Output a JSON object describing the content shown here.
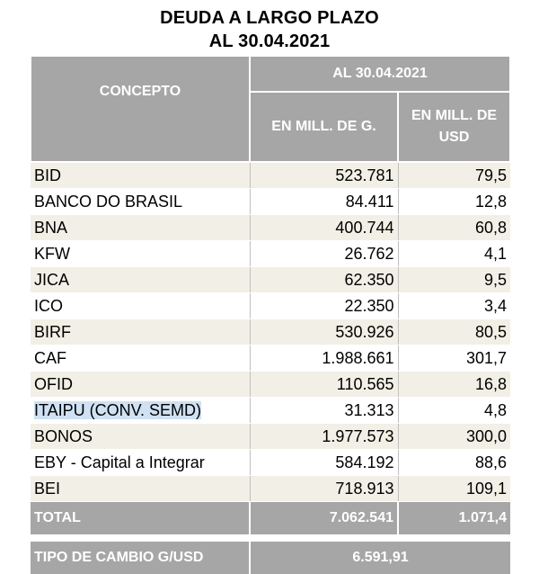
{
  "title_line1": "DEUDA A LARGO PLAZO",
  "title_line2": "AL 30.04.2021",
  "header": {
    "concepto": "CONCEPTO",
    "date": "AL 30.04.2021",
    "col_g": "EN MILL. DE G.",
    "col_usd": "EN MILL. DE USD"
  },
  "rows": [
    {
      "concepto": "BID",
      "g": "523.781",
      "usd": "79,5"
    },
    {
      "concepto": "BANCO DO BRASIL",
      "g": "84.411",
      "usd": "12,8"
    },
    {
      "concepto": "BNA",
      "g": "400.744",
      "usd": "60,8"
    },
    {
      "concepto": "KFW",
      "g": "26.762",
      "usd": "4,1"
    },
    {
      "concepto": "JICA",
      "g": "62.350",
      "usd": "9,5"
    },
    {
      "concepto": "ICO",
      "g": "22.350",
      "usd": "3,4"
    },
    {
      "concepto": "BIRF",
      "g": "530.926",
      "usd": "80,5"
    },
    {
      "concepto": "CAF",
      "g": "1.988.661",
      "usd": "301,7"
    },
    {
      "concepto": "OFID",
      "g": "110.565",
      "usd": "16,8"
    },
    {
      "concepto": "ITAIPU (CONV. SEMD)",
      "g": "31.313",
      "usd": "4,8"
    },
    {
      "concepto": "BONOS",
      "g": "1.977.573",
      "usd": "300,0"
    },
    {
      "concepto": "EBY - Capital a Integrar",
      "g": "584.192",
      "usd": "88,6"
    },
    {
      "concepto": "BEI",
      "g": "718.913",
      "usd": "109,1"
    }
  ],
  "total": {
    "label": "TOTAL",
    "g": "7.062.541",
    "usd": "1.071,4"
  },
  "tipo_cambio": {
    "label": "TIPO DE CAMBIO G/USD",
    "value": "6.591,91"
  }
}
